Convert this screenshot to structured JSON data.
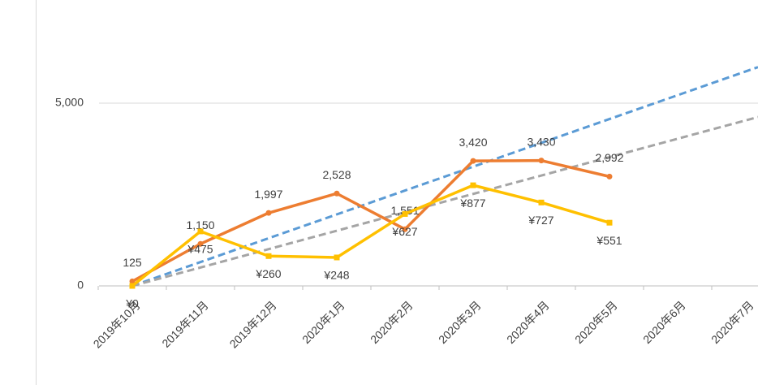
{
  "chart_data": {
    "type": "line",
    "categories": [
      "2019年10月",
      "2019年11月",
      "2019年12月",
      "2020年1月",
      "2020年2月",
      "2020年3月",
      "2020年4月",
      "2020年5月",
      "2020年6月",
      "2020年7月"
    ],
    "series": [
      {
        "color": "#ED7D31",
        "marker": "circle",
        "values": [
          125,
          1150,
          1997,
          2528,
          1551,
          3420,
          3430,
          2992,
          null,
          null
        ],
        "value_labels": [
          "125",
          "1,150",
          "1,997",
          "2,528",
          "1,551",
          "3,420",
          "3,430",
          "2,992",
          null,
          null
        ]
      },
      {
        "color": "#FFC000",
        "marker": "square",
        "axis": "y2",
        "values": [
          0,
          475,
          260,
          248,
          627,
          877,
          727,
          551,
          null,
          null
        ],
        "value_labels": [
          "¥0",
          "¥475",
          "¥260",
          "¥248",
          "¥627",
          "¥877",
          "¥727",
          "¥551",
          null,
          null
        ]
      }
    ],
    "trendlines": [
      {
        "color": "#5B9BD5",
        "values": [
          0,
          5870
        ]
      },
      {
        "color": "#A5A5A5",
        "values": [
          0,
          4530
        ]
      }
    ],
    "ylim": [
      0,
      7000
    ],
    "yticks": [
      0,
      {
        "value": 5000,
        "label": "5,000"
      }
    ],
    "y2lim": [
      0,
      2230
    ],
    "grid": true
  }
}
